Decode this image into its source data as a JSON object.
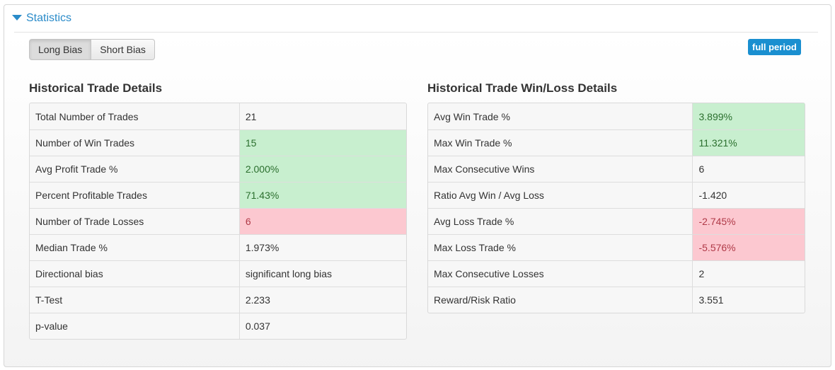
{
  "header": {
    "title": "Statistics"
  },
  "bias_toggle": {
    "long_label": "Long Bias",
    "short_label": "Short Bias",
    "active": "long"
  },
  "period_badge": "full period",
  "colors": {
    "accent": "#2a8bc9",
    "good": "#c8efcf",
    "bad": "#fcc8d0",
    "badge": "#1a8fd0"
  },
  "left_table": {
    "title": "Historical Trade Details",
    "rows": [
      {
        "label": "Total Number of Trades",
        "value": "21",
        "status": "neutral"
      },
      {
        "label": "Number of Win Trades",
        "value": "15",
        "status": "good"
      },
      {
        "label": "Avg Profit Trade %",
        "value": "2.000%",
        "status": "good"
      },
      {
        "label": "Percent Profitable Trades",
        "value": "71.43%",
        "status": "good"
      },
      {
        "label": "Number of Trade Losses",
        "value": "6",
        "status": "bad"
      },
      {
        "label": "Median Trade %",
        "value": "1.973%",
        "status": "neutral"
      },
      {
        "label": "Directional bias",
        "value": "significant long bias",
        "status": "neutral"
      },
      {
        "label": "T-Test",
        "value": "2.233",
        "status": "neutral"
      },
      {
        "label": "p-value",
        "value": "0.037",
        "status": "neutral"
      }
    ]
  },
  "right_table": {
    "title": "Historical Trade Win/Loss Details",
    "rows": [
      {
        "label": "Avg Win Trade %",
        "value": "3.899%",
        "status": "good"
      },
      {
        "label": "Max Win Trade %",
        "value": "11.321%",
        "status": "good"
      },
      {
        "label": "Max Consecutive Wins",
        "value": "6",
        "status": "neutral"
      },
      {
        "label": "Ratio Avg Win / Avg Loss",
        "value": "-1.420",
        "status": "neutral"
      },
      {
        "label": "Avg Loss Trade %",
        "value": "-2.745%",
        "status": "bad"
      },
      {
        "label": "Max Loss Trade %",
        "value": "-5.576%",
        "status": "bad"
      },
      {
        "label": "Max Consecutive Losses",
        "value": "2",
        "status": "neutral"
      },
      {
        "label": "Reward/Risk Ratio",
        "value": "3.551",
        "status": "neutral"
      }
    ]
  }
}
